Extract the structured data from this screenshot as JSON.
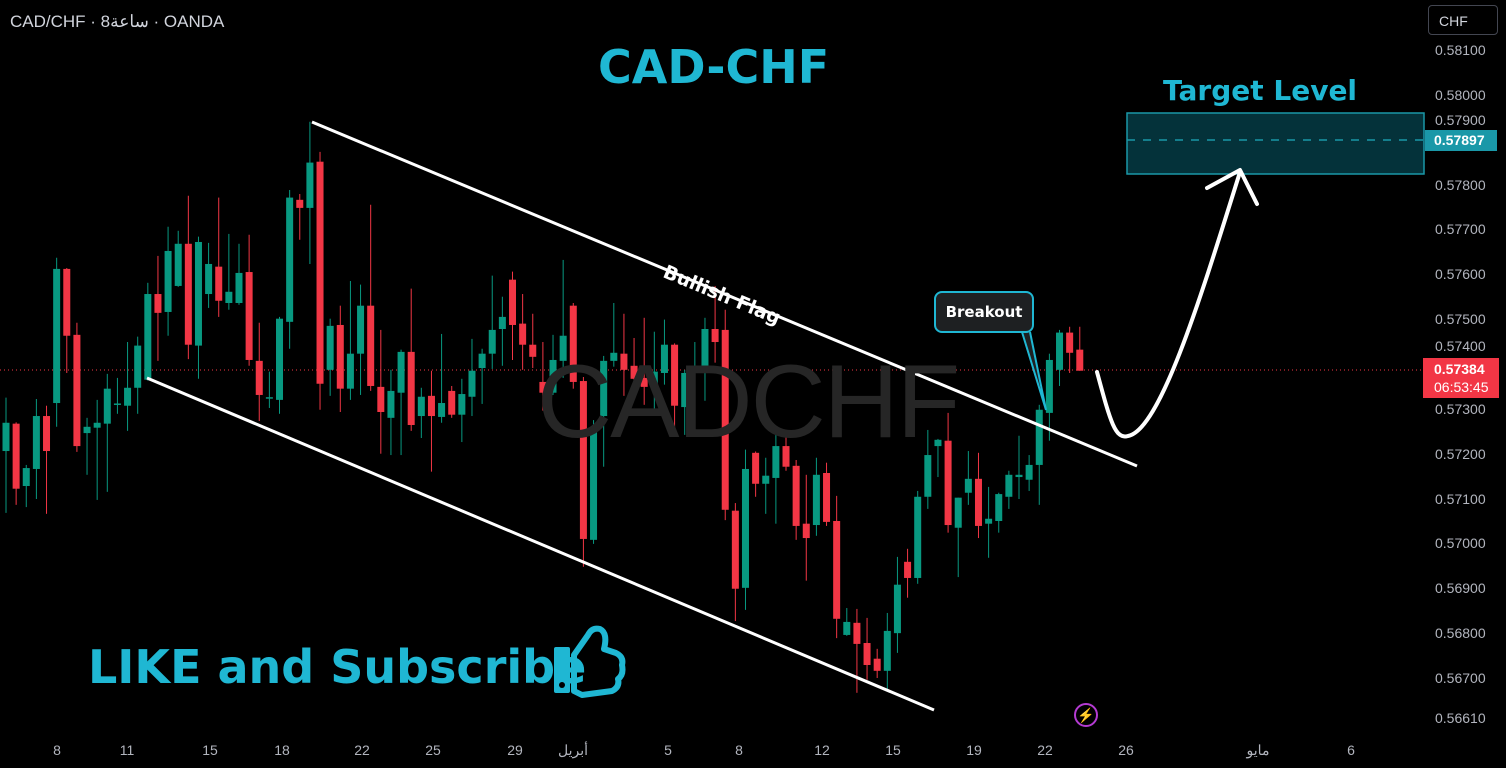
{
  "header": {
    "symbol_line": "CAD/CHF · 8ساعة · OANDA",
    "currency_button": "CHF"
  },
  "annotations": {
    "title": "CAD-CHF",
    "watermark": "CADCHF",
    "pattern_label": "Bullish Flag",
    "breakout_label": "Breakout",
    "target_label": "Target Level",
    "cta": "LIKE and Subscribe"
  },
  "colors": {
    "up": "#089981",
    "down": "#f23645",
    "accent": "#1fb7d3",
    "target_zone": "#04323a"
  },
  "icons": {
    "cta_icon": "thumbs-up-icon",
    "alert_icon": "lightning-icon"
  },
  "chart_data": {
    "type": "candlestick",
    "title": "CAD-CHF",
    "price_ticks": [
      "0.58100",
      "0.58000",
      "0.57900",
      "0.57800",
      "0.57700",
      "0.57600",
      "0.57500",
      "0.57400",
      "0.57300",
      "0.57200",
      "0.57100",
      "0.57000",
      "0.56900",
      "0.56800",
      "0.56700",
      "0.56610"
    ],
    "time_ticks": [
      "8",
      "11",
      "15",
      "18",
      "22",
      "25",
      "29",
      "أبريل",
      "5",
      "8",
      "12",
      "15",
      "19",
      "22",
      "26",
      "مايو",
      "6"
    ],
    "ylim": [
      0.5661,
      0.5821
    ],
    "current_price": "0.57384",
    "countdown": "06:53:45",
    "target_price": "0.57897",
    "target_zone": [
      0.5782,
      0.57955
    ],
    "ohlc": [
      [
        0.57206,
        0.57325,
        0.57068,
        0.57269
      ],
      [
        0.57267,
        0.5727,
        0.57086,
        0.57122
      ],
      [
        0.57128,
        0.57175,
        0.57081,
        0.57168
      ],
      [
        0.57166,
        0.57322,
        0.57099,
        0.57284
      ],
      [
        0.57284,
        0.57307,
        0.57066,
        0.57206
      ],
      [
        0.57313,
        0.57637,
        0.5726,
        0.57612
      ],
      [
        0.57612,
        0.57614,
        0.5738,
        0.57463
      ],
      [
        0.57465,
        0.57492,
        0.57204,
        0.57217
      ],
      [
        0.57246,
        0.5728,
        0.57153,
        0.5726
      ],
      [
        0.57258,
        0.5732,
        0.57097,
        0.57269
      ],
      [
        0.57267,
        0.57378,
        0.57115,
        0.57345
      ],
      [
        0.57311,
        0.57369,
        0.57289,
        0.57312
      ],
      [
        0.57307,
        0.57449,
        0.57251,
        0.57347
      ],
      [
        0.57347,
        0.57461,
        0.57289,
        0.57441
      ],
      [
        0.57365,
        0.57581,
        0.57363,
        0.57556
      ],
      [
        0.57556,
        0.57641,
        0.57407,
        0.57514
      ],
      [
        0.57516,
        0.57706,
        0.57463,
        0.57652
      ],
      [
        0.57574,
        0.57697,
        0.57572,
        0.57668
      ],
      [
        0.57668,
        0.57775,
        0.57411,
        0.57443
      ],
      [
        0.57441,
        0.57684,
        0.57367,
        0.57672
      ],
      [
        0.57556,
        0.5767,
        0.57525,
        0.57623
      ],
      [
        0.57617,
        0.57771,
        0.57505,
        0.57541
      ],
      [
        0.57536,
        0.5769,
        0.57521,
        0.57561
      ],
      [
        0.57536,
        0.57668,
        0.57532,
        0.57603
      ],
      [
        0.57605,
        0.57688,
        0.57396,
        0.57409
      ],
      [
        0.57407,
        0.57492,
        0.57273,
        0.57331
      ],
      [
        0.57325,
        0.57383,
        0.57302,
        0.57326
      ],
      [
        0.5732,
        0.57505,
        0.57289,
        0.57501
      ],
      [
        0.57494,
        0.57788,
        0.57434,
        0.57771
      ],
      [
        0.57766,
        0.57779,
        0.57677,
        0.57748
      ],
      [
        0.57748,
        0.5794,
        0.57623,
        0.57849
      ],
      [
        0.57851,
        0.57873,
        0.57298,
        0.57356
      ],
      [
        0.57387,
        0.57501,
        0.57329,
        0.57485
      ],
      [
        0.57487,
        0.5753,
        0.57293,
        0.57345
      ],
      [
        0.57345,
        0.57585,
        0.5732,
        0.57423
      ],
      [
        0.57423,
        0.57577,
        0.57331,
        0.5753
      ],
      [
        0.5753,
        0.57755,
        0.5734,
        0.57351
      ],
      [
        0.57349,
        0.57476,
        0.572,
        0.57293
      ],
      [
        0.5728,
        0.57387,
        0.57197,
        0.5734
      ],
      [
        0.57336,
        0.57432,
        0.57197,
        0.57427
      ],
      [
        0.57427,
        0.57568,
        0.57251,
        0.57264
      ],
      [
        0.57284,
        0.57347,
        0.57235,
        0.57327
      ],
      [
        0.57329,
        0.57385,
        0.5716,
        0.57284
      ],
      [
        0.57282,
        0.57467,
        0.57269,
        0.57313
      ],
      [
        0.5734,
        0.57351,
        0.5728,
        0.57287
      ],
      [
        0.57287,
        0.57367,
        0.57226,
        0.57333
      ],
      [
        0.57327,
        0.57456,
        0.57284,
        0.57385
      ],
      [
        0.57391,
        0.57434,
        0.57311,
        0.57423
      ],
      [
        0.57423,
        0.57597,
        0.57389,
        0.57476
      ],
      [
        0.57478,
        0.5755,
        0.57396,
        0.57505
      ],
      [
        0.57588,
        0.57606,
        0.57409,
        0.57487
      ],
      [
        0.5749,
        0.57556,
        0.57387,
        0.57443
      ],
      [
        0.57443,
        0.57512,
        0.57391,
        0.57416
      ],
      [
        0.5736,
        0.57449,
        0.57296,
        0.57336
      ],
      [
        0.57336,
        0.57465,
        0.57331,
        0.57409
      ],
      [
        0.57407,
        0.57632,
        0.57369,
        0.57463
      ],
      [
        0.5753,
        0.57536,
        0.57345,
        0.5736
      ],
      [
        0.57362,
        0.57371,
        0.56948,
        0.5701
      ],
      [
        0.57008,
        0.57275,
        0.56999,
        0.5726
      ],
      [
        0.57284,
        0.57418,
        0.57171,
        0.57407
      ],
      [
        0.57407,
        0.57536,
        0.57394,
        0.57425
      ],
      [
        0.57423,
        0.57512,
        0.57329,
        0.57387
      ],
      [
        0.57396,
        0.57458,
        0.57325,
        0.57367
      ],
      [
        0.57369,
        0.57503,
        0.57309,
        0.57349
      ],
      [
        0.57349,
        0.57472,
        0.573,
        0.57383
      ],
      [
        0.5738,
        0.57499,
        0.57354,
        0.57443
      ],
      [
        0.57443,
        0.57446,
        0.57244,
        0.57307
      ],
      [
        0.57304,
        0.57387,
        0.57242,
        0.5738
      ],
      [
        0.57387,
        0.57449,
        0.57336,
        0.57391
      ],
      [
        0.57387,
        0.57503,
        0.57318,
        0.57478
      ],
      [
        0.57478,
        0.57574,
        0.57403,
        0.57449
      ],
      [
        0.57476,
        0.57521,
        0.57052,
        0.57075
      ],
      [
        0.57073,
        0.5709,
        0.56827,
        0.56899
      ],
      [
        0.56901,
        0.57209,
        0.56852,
        0.57166
      ],
      [
        0.57202,
        0.57205,
        0.57104,
        0.57133
      ],
      [
        0.57133,
        0.57191,
        0.57066,
        0.57151
      ],
      [
        0.57146,
        0.57246,
        0.57044,
        0.57217
      ],
      [
        0.57217,
        0.57251,
        0.57162,
        0.57171
      ],
      [
        0.57173,
        0.57186,
        0.57008,
        0.57039
      ],
      [
        0.57044,
        0.57153,
        0.56917,
        0.57012
      ],
      [
        0.57041,
        0.57191,
        0.57017,
        0.57153
      ],
      [
        0.57157,
        0.5718,
        0.57039,
        0.57048
      ],
      [
        0.5705,
        0.57106,
        0.56789,
        0.56832
      ],
      [
        0.56796,
        0.56856,
        0.56794,
        0.56825
      ],
      [
        0.56823,
        0.56854,
        0.56667,
        0.56776
      ],
      [
        0.56778,
        0.56834,
        0.56696,
        0.56729
      ],
      [
        0.56743,
        0.56765,
        0.567,
        0.56716
      ],
      [
        0.56716,
        0.56845,
        0.56671,
        0.56805
      ],
      [
        0.568,
        0.5697,
        0.56756,
        0.56908
      ],
      [
        0.56959,
        0.56988,
        0.56879,
        0.56923
      ],
      [
        0.56923,
        0.57117,
        0.5691,
        0.57104
      ],
      [
        0.57104,
        0.57253,
        0.57077,
        0.57197
      ],
      [
        0.57217,
        0.57233,
        0.57148,
        0.57231
      ],
      [
        0.57229,
        0.57291,
        0.57024,
        0.57041
      ],
      [
        0.57035,
        0.57102,
        0.56925,
        0.57102
      ],
      [
        0.57113,
        0.57206,
        0.57086,
        0.57144
      ],
      [
        0.57144,
        0.57202,
        0.57012,
        0.57039
      ],
      [
        0.57044,
        0.57126,
        0.56968,
        0.57055
      ],
      [
        0.5705,
        0.57113,
        0.57024,
        0.5711
      ],
      [
        0.57104,
        0.57162,
        0.57077,
        0.57153
      ],
      [
        0.57148,
        0.5724,
        0.57099,
        0.57153
      ],
      [
        0.57142,
        0.57197,
        0.57117,
        0.57175
      ],
      [
        0.57175,
        0.57309,
        0.57086,
        0.57298
      ],
      [
        0.57291,
        0.57423,
        0.57229,
        0.57409
      ],
      [
        0.57387,
        0.57476,
        0.57351,
        0.5747
      ],
      [
        0.5747,
        0.57483,
        0.5738,
        0.57425
      ],
      [
        0.57432,
        0.57483,
        0.57385,
        0.57385
      ]
    ]
  }
}
